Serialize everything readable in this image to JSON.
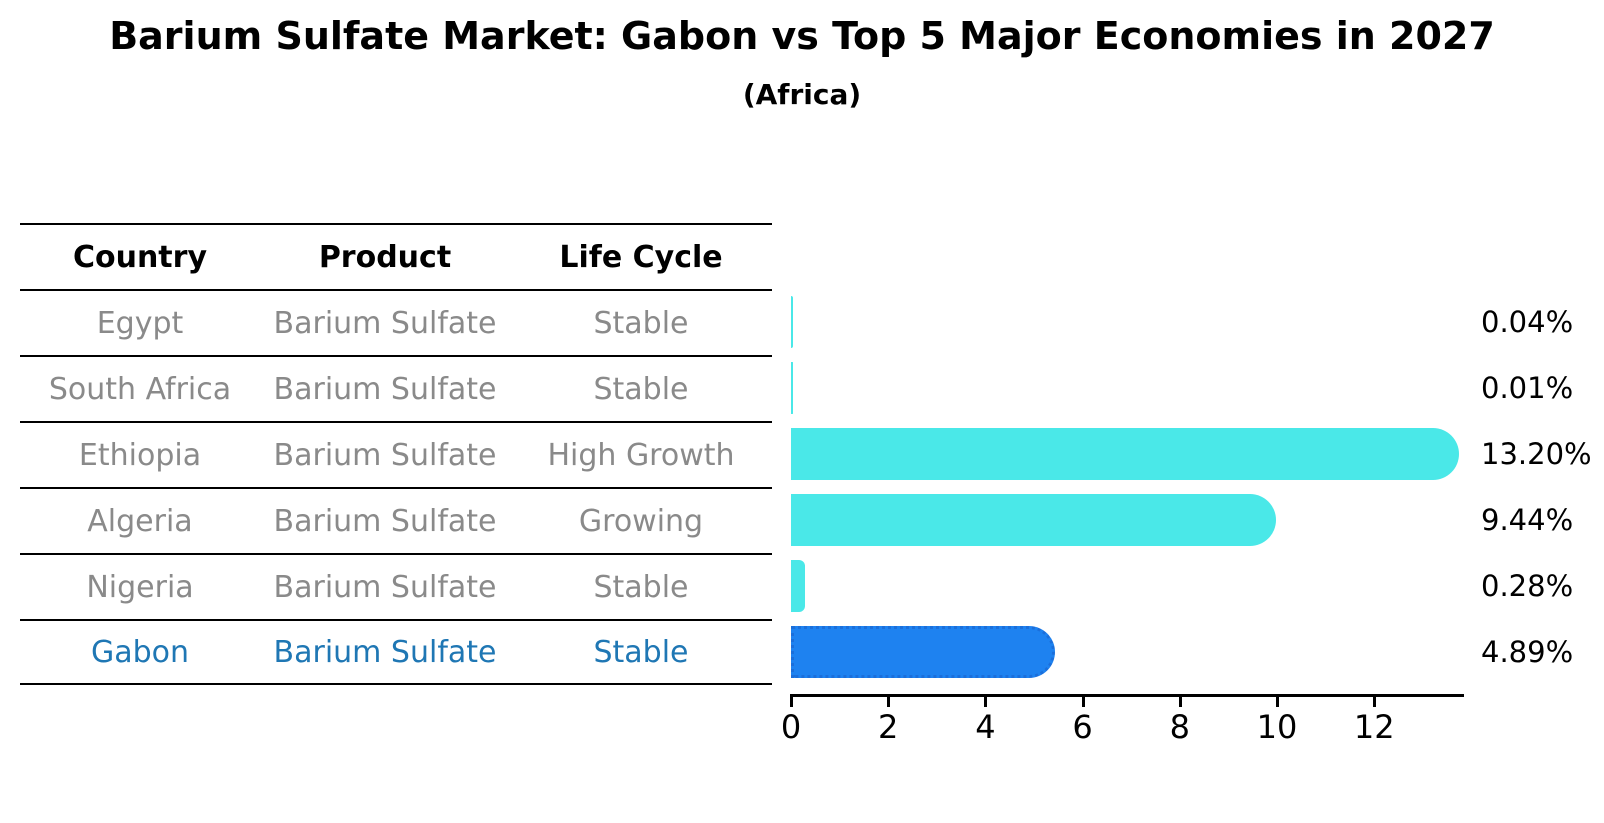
{
  "title": "Barium Sulfate Market: Gabon vs Top 5 Major Economies in 2027",
  "subtitle": "(Africa)",
  "table": {
    "headers": [
      "Country",
      "Product",
      "Life Cycle"
    ],
    "rows": [
      {
        "country": "Egypt",
        "product": "Barium Sulfate",
        "life_cycle": "Stable"
      },
      {
        "country": "South Africa",
        "product": "Barium Sulfate",
        "life_cycle": "Stable"
      },
      {
        "country": "Ethiopia",
        "product": "Barium Sulfate",
        "life_cycle": "High Growth"
      },
      {
        "country": "Algeria",
        "product": "Barium Sulfate",
        "life_cycle": "Growing"
      },
      {
        "country": "Nigeria",
        "product": "Barium Sulfate",
        "life_cycle": "Stable"
      },
      {
        "country": "Gabon",
        "product": "Barium Sulfate",
        "life_cycle": "Stable"
      }
    ]
  },
  "chart_data": {
    "type": "bar",
    "orientation": "horizontal",
    "title": "Barium Sulfate Market: Gabon vs Top 5 Major Economies in 2027",
    "subtitle": "(Africa)",
    "categories": [
      "Egypt",
      "South Africa",
      "Ethiopia",
      "Algeria",
      "Nigeria",
      "Gabon"
    ],
    "values": [
      0.04,
      0.01,
      13.2,
      9.44,
      0.28,
      4.89
    ],
    "value_labels": [
      "0.04%",
      "0.01%",
      "13.20%",
      "9.44%",
      "0.28%",
      "4.89%"
    ],
    "x_ticks": [
      0,
      2,
      4,
      6,
      8,
      10,
      12
    ],
    "xlim": [
      0,
      13.85
    ],
    "grid": false,
    "legend": "none",
    "bar_color": "#4ae8e8",
    "highlight_index": 5,
    "highlight_color": "#1e82f0",
    "highlight_border_color": "#1b6fdb",
    "highlight_text_color": "#1f77b4"
  }
}
